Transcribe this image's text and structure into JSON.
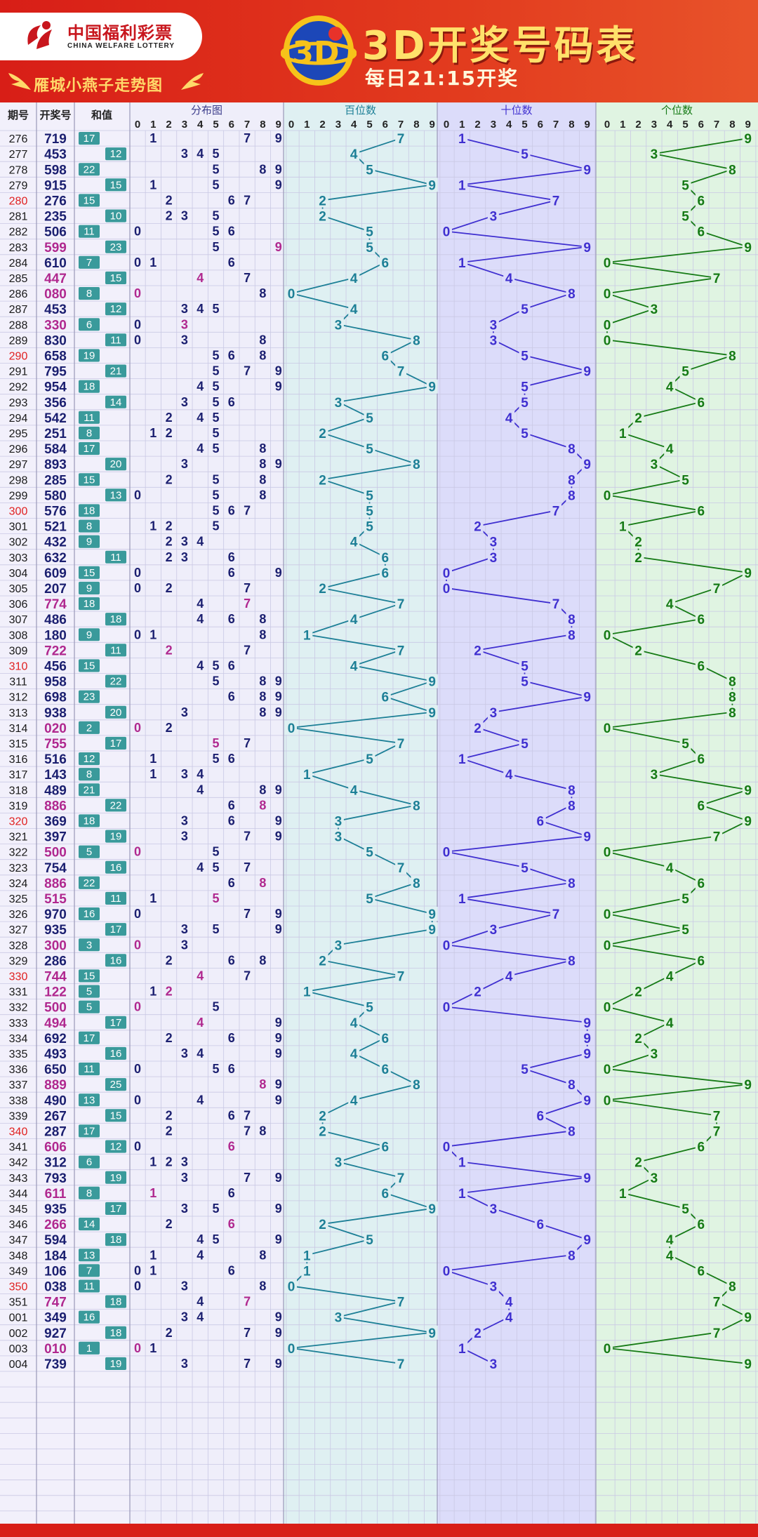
{
  "header": {
    "logo_cn": "中国福利彩票",
    "logo_en": "CHINA WELFARE LOTTERY",
    "subtitle": "雁城小燕子走势图",
    "badge_text": "3D",
    "title": "3D开奖号码表",
    "draw_time": "每日21:15开奖"
  },
  "colors": {
    "header_red": "#d81e17",
    "title_gold": "#ffe16b",
    "hundreds": "#1c7f96",
    "tens": "#3f2fd0",
    "ones": "#157a15",
    "repeat_magenta": "#b0288f",
    "navy": "#1b1f70",
    "sum_box": "#3a9a9b",
    "special_issue_red": "#e02020"
  },
  "chart_data": {
    "type": "table",
    "title": "3D开奖号码表",
    "column_headers": {
      "issue": "期号",
      "number": "开奖号",
      "sum": "和值",
      "distribution": "分布图",
      "hundreds": "百位数",
      "tens": "十位数",
      "ones": "个位数"
    },
    "digit_labels": [
      "0",
      "1",
      "2",
      "3",
      "4",
      "5",
      "6",
      "7",
      "8",
      "9"
    ],
    "red_issues": [
      "280",
      "290",
      "300",
      "310",
      "320",
      "330",
      "340",
      "350"
    ],
    "rows": [
      {
        "issue": "276",
        "number": "719",
        "sum": 17
      },
      {
        "issue": "277",
        "number": "453",
        "sum": 12
      },
      {
        "issue": "278",
        "number": "598",
        "sum": 22
      },
      {
        "issue": "279",
        "number": "915",
        "sum": 15
      },
      {
        "issue": "280",
        "number": "276",
        "sum": 15
      },
      {
        "issue": "281",
        "number": "235",
        "sum": 10
      },
      {
        "issue": "282",
        "number": "506",
        "sum": 11
      },
      {
        "issue": "283",
        "number": "599",
        "sum": 23
      },
      {
        "issue": "284",
        "number": "610",
        "sum": 7
      },
      {
        "issue": "285",
        "number": "447",
        "sum": 15
      },
      {
        "issue": "286",
        "number": "080",
        "sum": 8
      },
      {
        "issue": "287",
        "number": "453",
        "sum": 12
      },
      {
        "issue": "288",
        "number": "330",
        "sum": 6
      },
      {
        "issue": "289",
        "number": "830",
        "sum": 11
      },
      {
        "issue": "290",
        "number": "658",
        "sum": 19
      },
      {
        "issue": "291",
        "number": "795",
        "sum": 21
      },
      {
        "issue": "292",
        "number": "954",
        "sum": 18
      },
      {
        "issue": "293",
        "number": "356",
        "sum": 14
      },
      {
        "issue": "294",
        "number": "542",
        "sum": 11
      },
      {
        "issue": "295",
        "number": "251",
        "sum": 8
      },
      {
        "issue": "296",
        "number": "584",
        "sum": 17
      },
      {
        "issue": "297",
        "number": "893",
        "sum": 20
      },
      {
        "issue": "298",
        "number": "285",
        "sum": 15
      },
      {
        "issue": "299",
        "number": "580",
        "sum": 13
      },
      {
        "issue": "300",
        "number": "576",
        "sum": 18
      },
      {
        "issue": "301",
        "number": "521",
        "sum": 8
      },
      {
        "issue": "302",
        "number": "432",
        "sum": 9
      },
      {
        "issue": "303",
        "number": "632",
        "sum": 11
      },
      {
        "issue": "304",
        "number": "609",
        "sum": 15
      },
      {
        "issue": "305",
        "number": "207",
        "sum": 9
      },
      {
        "issue": "306",
        "number": "774",
        "sum": 18
      },
      {
        "issue": "307",
        "number": "486",
        "sum": 18
      },
      {
        "issue": "308",
        "number": "180",
        "sum": 9
      },
      {
        "issue": "309",
        "number": "722",
        "sum": 11
      },
      {
        "issue": "310",
        "number": "456",
        "sum": 15
      },
      {
        "issue": "311",
        "number": "958",
        "sum": 22
      },
      {
        "issue": "312",
        "number": "698",
        "sum": 23
      },
      {
        "issue": "313",
        "number": "938",
        "sum": 20
      },
      {
        "issue": "314",
        "number": "020",
        "sum": 2
      },
      {
        "issue": "315",
        "number": "755",
        "sum": 17
      },
      {
        "issue": "316",
        "number": "516",
        "sum": 12
      },
      {
        "issue": "317",
        "number": "143",
        "sum": 8
      },
      {
        "issue": "318",
        "number": "489",
        "sum": 21
      },
      {
        "issue": "319",
        "number": "886",
        "sum": 22
      },
      {
        "issue": "320",
        "number": "369",
        "sum": 18
      },
      {
        "issue": "321",
        "number": "397",
        "sum": 19
      },
      {
        "issue": "322",
        "number": "500",
        "sum": 5
      },
      {
        "issue": "323",
        "number": "754",
        "sum": 16
      },
      {
        "issue": "324",
        "number": "886",
        "sum": 22
      },
      {
        "issue": "325",
        "number": "515",
        "sum": 11
      },
      {
        "issue": "326",
        "number": "970",
        "sum": 16
      },
      {
        "issue": "327",
        "number": "935",
        "sum": 17
      },
      {
        "issue": "328",
        "number": "300",
        "sum": 3
      },
      {
        "issue": "329",
        "number": "286",
        "sum": 16
      },
      {
        "issue": "330",
        "number": "744",
        "sum": 15
      },
      {
        "issue": "331",
        "number": "122",
        "sum": 5
      },
      {
        "issue": "332",
        "number": "500",
        "sum": 5
      },
      {
        "issue": "333",
        "number": "494",
        "sum": 17
      },
      {
        "issue": "334",
        "number": "692",
        "sum": 17
      },
      {
        "issue": "335",
        "number": "493",
        "sum": 16
      },
      {
        "issue": "336",
        "number": "650",
        "sum": 11
      },
      {
        "issue": "337",
        "number": "889",
        "sum": 25
      },
      {
        "issue": "338",
        "number": "490",
        "sum": 13
      },
      {
        "issue": "339",
        "number": "267",
        "sum": 15
      },
      {
        "issue": "340",
        "number": "287",
        "sum": 17
      },
      {
        "issue": "341",
        "number": "606",
        "sum": 12
      },
      {
        "issue": "342",
        "number": "312",
        "sum": 6
      },
      {
        "issue": "343",
        "number": "793",
        "sum": 19
      },
      {
        "issue": "344",
        "number": "611",
        "sum": 8
      },
      {
        "issue": "345",
        "number": "935",
        "sum": 17
      },
      {
        "issue": "346",
        "number": "266",
        "sum": 14
      },
      {
        "issue": "347",
        "number": "594",
        "sum": 18
      },
      {
        "issue": "348",
        "number": "184",
        "sum": 13
      },
      {
        "issue": "349",
        "number": "106",
        "sum": 7
      },
      {
        "issue": "350",
        "number": "038",
        "sum": 11
      },
      {
        "issue": "351",
        "number": "747",
        "sum": 18
      },
      {
        "issue": "001",
        "number": "349",
        "sum": 16
      },
      {
        "issue": "002",
        "number": "927",
        "sum": 18
      },
      {
        "issue": "003",
        "number": "010",
        "sum": 1
      },
      {
        "issue": "004",
        "number": "739",
        "sum": 19
      }
    ]
  }
}
